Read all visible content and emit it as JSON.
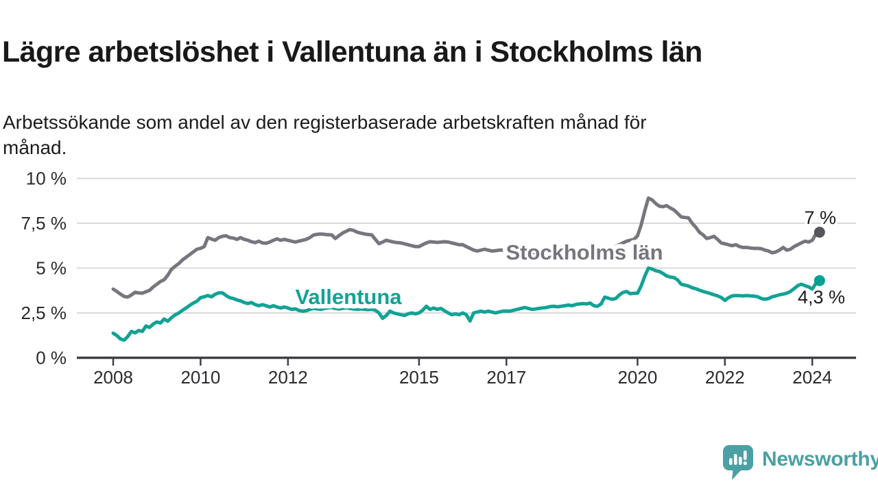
{
  "header": {
    "title": "Lägre arbetslöshet i Vallentuna än i Stockholms län",
    "subtitle_lines": [
      "Arbetssökande som andel av den registerbaserade arbetskraften månad för",
      "månad."
    ]
  },
  "footer": {
    "brand": "Newsworthy",
    "logo_icon": "speech-bubble-bar-chart-icon",
    "brand_color": "#4ba0a4"
  },
  "colors": {
    "background": "#ffffff",
    "title_text": "#191919",
    "axis_text": "#2a2a2e",
    "axis_line": "#3f3f44",
    "gridline": "#dadada",
    "stockholm_line": "#76767e",
    "stockholm_dot": "#55555c",
    "vallentuna_line": "#12a296",
    "vallentuna_dot": "#00a191",
    "value_label_text": "#1c1c1c"
  },
  "chart_data": {
    "type": "line",
    "title": "Lägre arbetslöshet i Vallentuna än i Stockholms län",
    "subtitle": "Arbetssökande som andel av den registerbaserade arbetskraften månad för månad.",
    "frequency": "monthly",
    "start_year": 2008,
    "end_x": 2024.17,
    "ylim": [
      0,
      10
    ],
    "grid": "horizontal",
    "legend_position": "inline-labels",
    "x_tick_years": [
      2008,
      2010,
      2012,
      2015,
      2017,
      2020,
      2022,
      2024
    ],
    "x_tick_labels": [
      "2008",
      "2010",
      "2012",
      "2015",
      "2017",
      "2020",
      "2022",
      "2024"
    ],
    "y_ticks": [
      {
        "value": 0,
        "label": "0 %"
      },
      {
        "value": 2.5,
        "label": "2,5 %"
      },
      {
        "value": 5,
        "label": "5 %"
      },
      {
        "value": 7.5,
        "label": "7,5 %"
      },
      {
        "value": 10,
        "label": "10 %"
      }
    ],
    "series": [
      {
        "name": "Stockholms län",
        "color": "#76767e",
        "dot_color": "#55555c",
        "end_label": "7 %",
        "end_value": 7.0,
        "values": [
          3.83,
          3.7,
          3.55,
          3.42,
          3.38,
          3.5,
          3.65,
          3.62,
          3.6,
          3.68,
          3.76,
          3.95,
          4.1,
          4.25,
          4.35,
          4.6,
          4.93,
          5.1,
          5.25,
          5.45,
          5.6,
          5.75,
          5.9,
          6.05,
          6.1,
          6.2,
          6.7,
          6.62,
          6.55,
          6.7,
          6.77,
          6.8,
          6.7,
          6.67,
          6.6,
          6.7,
          6.6,
          6.55,
          6.47,
          6.42,
          6.5,
          6.4,
          6.38,
          6.45,
          6.55,
          6.63,
          6.55,
          6.6,
          6.55,
          6.5,
          6.45,
          6.5,
          6.55,
          6.6,
          6.7,
          6.84,
          6.88,
          6.9,
          6.88,
          6.86,
          6.85,
          6.65,
          6.8,
          6.95,
          7.05,
          7.15,
          7.1,
          7.0,
          6.95,
          6.9,
          6.87,
          6.85,
          6.6,
          6.36,
          6.45,
          6.55,
          6.5,
          6.45,
          6.42,
          6.4,
          6.35,
          6.3,
          6.25,
          6.2,
          6.2,
          6.3,
          6.4,
          6.47,
          6.45,
          6.43,
          6.45,
          6.47,
          6.45,
          6.4,
          6.35,
          6.3,
          6.3,
          6.2,
          6.1,
          6.0,
          5.95,
          6.0,
          6.05,
          6.0,
          5.95,
          5.97,
          6.0,
          6.0,
          5.95,
          5.9,
          5.92,
          5.88,
          5.9,
          5.85,
          5.88,
          5.9,
          5.85,
          5.87,
          5.9,
          5.92,
          5.9,
          5.88,
          5.85,
          5.88,
          5.9,
          5.92,
          5.9,
          5.88,
          5.9,
          5.93,
          5.95,
          6.0,
          6.0,
          6.05,
          6.1,
          6.08,
          6.12,
          6.15,
          6.2,
          6.3,
          6.4,
          6.5,
          6.55,
          6.6,
          6.8,
          7.4,
          8.2,
          8.9,
          8.8,
          8.6,
          8.45,
          8.42,
          8.48,
          8.35,
          8.24,
          8.05,
          7.85,
          7.82,
          7.8,
          7.5,
          7.28,
          7.0,
          6.85,
          6.65,
          6.7,
          6.77,
          6.6,
          6.4,
          6.35,
          6.3,
          6.25,
          6.3,
          6.2,
          6.15,
          6.15,
          6.12,
          6.1,
          6.1,
          6.08,
          6.0,
          5.95,
          5.85,
          5.9,
          6.0,
          6.15,
          6.0,
          6.05,
          6.2,
          6.3,
          6.4,
          6.5,
          6.45,
          6.55,
          6.9,
          7.0
        ]
      },
      {
        "name": "Vallentuna",
        "color": "#12a296",
        "dot_color": "#00a191",
        "end_label": "4,3 %",
        "end_value": 4.3,
        "values": [
          1.37,
          1.24,
          1.05,
          0.98,
          1.18,
          1.47,
          1.39,
          1.52,
          1.47,
          1.77,
          1.69,
          1.88,
          2.0,
          1.94,
          2.16,
          2.04,
          2.23,
          2.39,
          2.49,
          2.64,
          2.77,
          2.92,
          3.05,
          3.15,
          3.35,
          3.4,
          3.47,
          3.4,
          3.54,
          3.62,
          3.62,
          3.47,
          3.35,
          3.3,
          3.22,
          3.17,
          3.08,
          3.02,
          3.08,
          2.96,
          2.9,
          2.96,
          2.9,
          2.83,
          2.9,
          2.83,
          2.77,
          2.83,
          2.77,
          2.7,
          2.73,
          2.64,
          2.6,
          2.62,
          2.7,
          2.75,
          2.72,
          2.7,
          2.75,
          2.78,
          2.8,
          2.75,
          2.72,
          2.75,
          2.78,
          2.75,
          2.72,
          2.7,
          2.72,
          2.7,
          2.68,
          2.7,
          2.65,
          2.5,
          2.2,
          2.35,
          2.6,
          2.5,
          2.45,
          2.4,
          2.36,
          2.45,
          2.5,
          2.45,
          2.5,
          2.65,
          2.87,
          2.7,
          2.77,
          2.7,
          2.75,
          2.62,
          2.5,
          2.4,
          2.45,
          2.4,
          2.5,
          2.4,
          2.05,
          2.5,
          2.55,
          2.6,
          2.55,
          2.6,
          2.55,
          2.5,
          2.55,
          2.6,
          2.6,
          2.6,
          2.65,
          2.7,
          2.75,
          2.8,
          2.75,
          2.7,
          2.72,
          2.75,
          2.78,
          2.8,
          2.85,
          2.87,
          2.84,
          2.87,
          2.9,
          2.94,
          2.9,
          2.97,
          3.0,
          3.02,
          3.0,
          3.05,
          2.9,
          2.87,
          3.0,
          3.38,
          3.32,
          3.26,
          3.3,
          3.5,
          3.64,
          3.7,
          3.57,
          3.6,
          3.6,
          4.0,
          4.55,
          5.0,
          4.95,
          4.85,
          4.81,
          4.7,
          4.56,
          4.5,
          4.47,
          4.34,
          4.1,
          4.05,
          4.0,
          3.9,
          3.85,
          3.77,
          3.7,
          3.64,
          3.58,
          3.51,
          3.45,
          3.36,
          3.2,
          3.35,
          3.45,
          3.47,
          3.46,
          3.45,
          3.47,
          3.45,
          3.44,
          3.4,
          3.3,
          3.26,
          3.3,
          3.4,
          3.45,
          3.51,
          3.55,
          3.6,
          3.7,
          3.85,
          4.02,
          4.1,
          4.02,
          3.95,
          3.83,
          4.15,
          4.3
        ]
      }
    ]
  }
}
